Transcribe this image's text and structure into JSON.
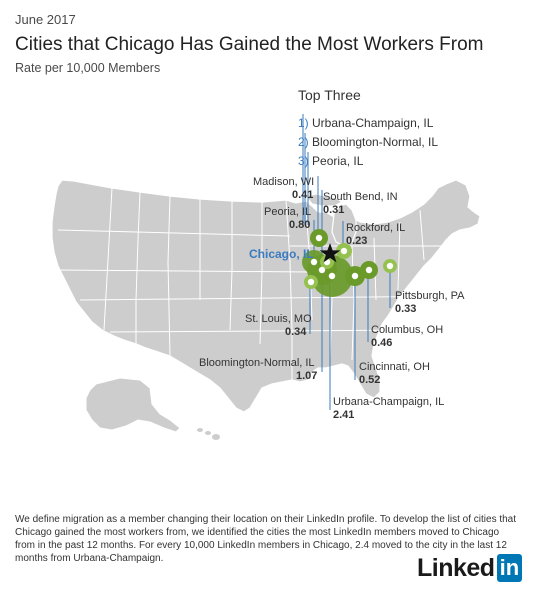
{
  "header": {
    "date": "June 2017",
    "title": "Cities that Chicago Has Gained the Most Workers From",
    "subtitle": "Rate per 10,000 Members"
  },
  "top_three": {
    "heading": "Top Three",
    "items": [
      {
        "rank": "1)",
        "name": "Urbana-Champaign, IL"
      },
      {
        "rank": "2)",
        "name": "Bloomington-Normal, IL"
      },
      {
        "rank": "3)",
        "name": "Peoria, IL"
      }
    ]
  },
  "destination": {
    "name": "Chicago, IL",
    "color": "#3b7bbf"
  },
  "cities": [
    {
      "name": "Madison, WI",
      "rate": "0.41"
    },
    {
      "name": "South Bend, IN",
      "rate": "0.31"
    },
    {
      "name": "Peoria, IL",
      "rate": "0.80"
    },
    {
      "name": "Rockford, IL",
      "rate": "0.23"
    },
    {
      "name": "Pittsburgh, PA",
      "rate": "0.33"
    },
    {
      "name": "St. Louis, MO",
      "rate": "0.34"
    },
    {
      "name": "Columbus, OH",
      "rate": "0.46"
    },
    {
      "name": "Bloomington-Normal, IL",
      "rate": "1.07"
    },
    {
      "name": "Cincinnati, OH",
      "rate": "0.52"
    },
    {
      "name": "Urbana-Champaign, IL",
      "rate": "2.41"
    }
  ],
  "colors": {
    "land": "#cdcdcd",
    "border": "#ffffff",
    "bubble": "#6a9a2a",
    "bubble_light": "#95c150",
    "leader_line": "#3b7bbf"
  },
  "footer": {
    "text": "We define migration as a member changing their location on their LinkedIn profile. To develop the list of cities that Chicago gained the most workers from, we identified the cities the most LinkedIn members moved to Chicago from in the past 12 months. For every 10,000 LinkedIn members in Chicago, 2.4 moved to the city in the last 12 months from Urbana-Champaign."
  },
  "logo": {
    "text": "Linked",
    "box": "in"
  }
}
